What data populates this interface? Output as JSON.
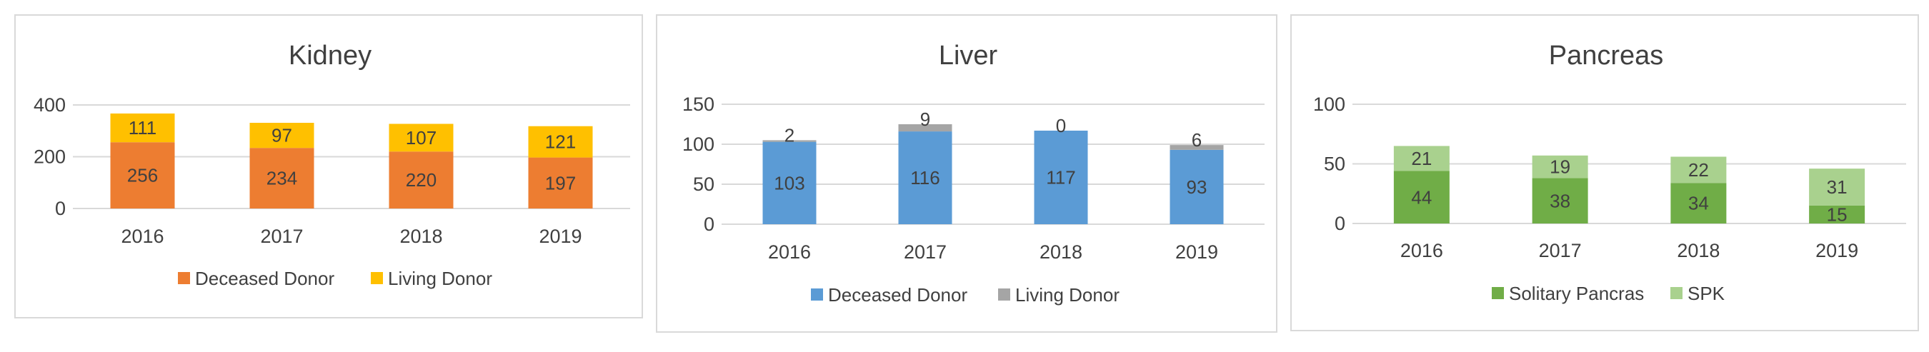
{
  "chart_data": [
    {
      "type": "bar",
      "stacked": true,
      "title": "Kidney",
      "categories": [
        "2016",
        "2017",
        "2018",
        "2019"
      ],
      "series": [
        {
          "name": "Deceased Donor",
          "values": [
            256,
            234,
            220,
            197
          ],
          "color": "#ed7d31"
        },
        {
          "name": "Living Donor",
          "values": [
            111,
            97,
            107,
            121
          ],
          "color": "#ffc000"
        }
      ],
      "ylim": [
        0,
        400
      ],
      "yticks": [
        "0",
        "200",
        "400"
      ],
      "grid": true,
      "legend": "bottom"
    },
    {
      "type": "bar",
      "stacked": true,
      "title": "Liver",
      "categories": [
        "2016",
        "2017",
        "2018",
        "2019"
      ],
      "series": [
        {
          "name": "Deceased Donor",
          "values": [
            103,
            116,
            117,
            93
          ],
          "color": "#5b9bd5"
        },
        {
          "name": "Living Donor",
          "values": [
            2,
            9,
            0,
            6
          ],
          "color": "#a5a5a5"
        }
      ],
      "ylim": [
        0,
        150
      ],
      "yticks": [
        "0",
        "50",
        "100",
        "150"
      ],
      "grid": true,
      "legend": "bottom"
    },
    {
      "type": "bar",
      "stacked": true,
      "title": "Pancreas",
      "categories": [
        "2016",
        "2017",
        "2018",
        "2019"
      ],
      "series": [
        {
          "name": "Solitary Pancras",
          "values": [
            44,
            38,
            34,
            15
          ],
          "color": "#70ad47"
        },
        {
          "name": "SPK",
          "values": [
            21,
            19,
            22,
            31
          ],
          "color": "#a9d18e"
        }
      ],
      "ylim": [
        0,
        100
      ],
      "yticks": [
        "0",
        "50",
        "100"
      ],
      "grid": true,
      "legend": "bottom"
    }
  ]
}
